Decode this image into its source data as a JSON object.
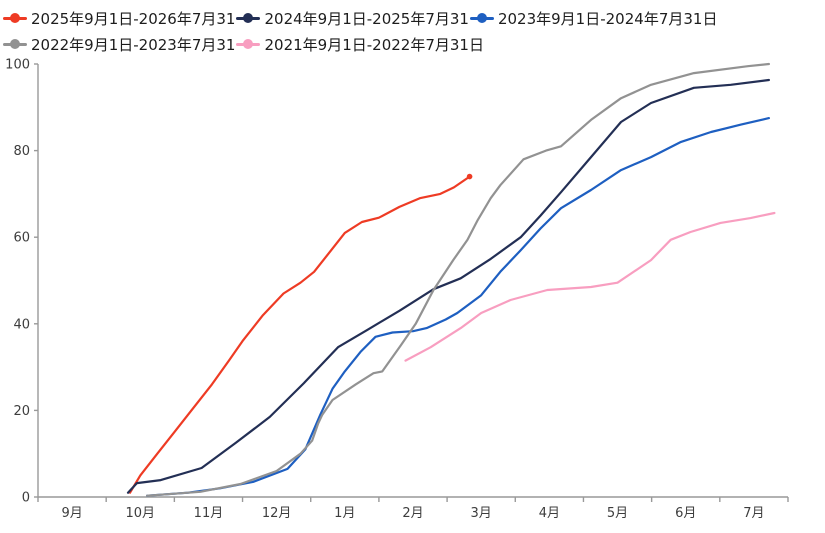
{
  "chart_data": {
    "type": "line",
    "title": "",
    "xlabel": "",
    "ylabel": "",
    "categories": [
      "9月",
      "10月",
      "11月",
      "12月",
      "1月",
      "2月",
      "3月",
      "4月",
      "5月",
      "6月",
      "7月"
    ],
    "y_ticks": [
      0,
      20,
      40,
      60,
      80,
      100
    ],
    "ylim": [
      0,
      100
    ],
    "grid": false,
    "legend_position": "top-left",
    "x_encoding": "month index units: 0 = 9月 center, 10 = 7月 center",
    "series": [
      {
        "name": "2025年9月1日-2026年7月31",
        "color": "#ee3b24",
        "end_dot": true,
        "points": [
          [
            0.85,
            1
          ],
          [
            1.0,
            5
          ],
          [
            1.25,
            10
          ],
          [
            1.5,
            15
          ],
          [
            1.75,
            20
          ],
          [
            2.05,
            26
          ],
          [
            2.3,
            31.5
          ],
          [
            2.5,
            36
          ],
          [
            2.8,
            42
          ],
          [
            3.1,
            47
          ],
          [
            3.35,
            49.5
          ],
          [
            3.55,
            52
          ],
          [
            3.8,
            57
          ],
          [
            4.0,
            61
          ],
          [
            4.25,
            63.5
          ],
          [
            4.5,
            64.5
          ],
          [
            4.8,
            67
          ],
          [
            5.1,
            69
          ],
          [
            5.4,
            70
          ],
          [
            5.6,
            71.5
          ],
          [
            5.83,
            74
          ]
        ]
      },
      {
        "name": "2024年9月1日-2025年7月31",
        "color": "#232f55",
        "end_dot": false,
        "points": [
          [
            0.82,
            1
          ],
          [
            0.95,
            3.2
          ],
          [
            1.3,
            3.9
          ],
          [
            1.9,
            6.7
          ],
          [
            2.4,
            12.5
          ],
          [
            2.9,
            18.5
          ],
          [
            3.4,
            26.3
          ],
          [
            3.9,
            34.6
          ],
          [
            4.33,
            38.6
          ],
          [
            4.8,
            43
          ],
          [
            5.3,
            48
          ],
          [
            5.7,
            50.5
          ],
          [
            6.14,
            55
          ],
          [
            6.58,
            60
          ],
          [
            6.87,
            65
          ],
          [
            7.17,
            70.4
          ],
          [
            7.61,
            78.5
          ],
          [
            8.05,
            86.6
          ],
          [
            8.49,
            91
          ],
          [
            9.12,
            94.5
          ],
          [
            9.66,
            95.2
          ],
          [
            10.22,
            96.3
          ]
        ]
      },
      {
        "name": "2023年9月1日-2024年7月31日",
        "color": "#1e5fc1",
        "end_dot": false,
        "points": [
          [
            1.1,
            0.3
          ],
          [
            1.7,
            1
          ],
          [
            2.17,
            2
          ],
          [
            2.66,
            3.5
          ],
          [
            3.16,
            6.5
          ],
          [
            3.42,
            11
          ],
          [
            3.64,
            19
          ],
          [
            3.82,
            25
          ],
          [
            4.0,
            29
          ],
          [
            4.23,
            33.5
          ],
          [
            4.45,
            37
          ],
          [
            4.7,
            38
          ],
          [
            5.0,
            38.3
          ],
          [
            5.2,
            39
          ],
          [
            5.48,
            41
          ],
          [
            5.65,
            42.5
          ],
          [
            6.0,
            46.6
          ],
          [
            6.28,
            52
          ],
          [
            6.58,
            57
          ],
          [
            6.87,
            62
          ],
          [
            7.17,
            66.7
          ],
          [
            7.61,
            70.9
          ],
          [
            8.05,
            75.5
          ],
          [
            8.49,
            78.5
          ],
          [
            8.93,
            82
          ],
          [
            9.37,
            84.3
          ],
          [
            9.81,
            86
          ],
          [
            10.22,
            87.5
          ]
        ]
      },
      {
        "name": "2022年9月1日-2023年7月31",
        "color": "#929292",
        "end_dot": false,
        "points": [
          [
            1.1,
            0.3
          ],
          [
            1.88,
            1.2
          ],
          [
            2.47,
            3
          ],
          [
            3.0,
            6
          ],
          [
            3.35,
            10
          ],
          [
            3.52,
            13
          ],
          [
            3.61,
            17
          ],
          [
            3.67,
            19
          ],
          [
            3.82,
            22.4
          ],
          [
            4.16,
            26
          ],
          [
            4.42,
            28.6
          ],
          [
            4.55,
            29
          ],
          [
            4.82,
            35
          ],
          [
            5.04,
            40
          ],
          [
            5.3,
            47.8
          ],
          [
            5.59,
            54.7
          ],
          [
            5.8,
            59.4
          ],
          [
            5.95,
            64
          ],
          [
            6.14,
            69
          ],
          [
            6.28,
            72
          ],
          [
            6.62,
            78
          ],
          [
            6.95,
            80
          ],
          [
            7.17,
            81
          ],
          [
            7.61,
            87.1
          ],
          [
            8.05,
            92.1
          ],
          [
            8.49,
            95.2
          ],
          [
            9.12,
            97.9
          ],
          [
            9.91,
            99.5
          ],
          [
            10.22,
            100
          ]
        ]
      },
      {
        "name": "2021年9月1日-2022年7月31日",
        "color": "#f89ec0",
        "end_dot": false,
        "points": [
          [
            4.89,
            31.5
          ],
          [
            5.26,
            34.6
          ],
          [
            5.7,
            39
          ],
          [
            6.0,
            42.5
          ],
          [
            6.43,
            45.5
          ],
          [
            6.97,
            47.8
          ],
          [
            7.61,
            48.5
          ],
          [
            8.0,
            49.5
          ],
          [
            8.49,
            54.7
          ],
          [
            8.78,
            59.4
          ],
          [
            9.07,
            61.2
          ],
          [
            9.51,
            63.3
          ],
          [
            9.95,
            64.4
          ],
          [
            10.3,
            65.6
          ]
        ]
      }
    ],
    "axis_color": "#999999",
    "tick_label_color": "#3d3d3d"
  }
}
